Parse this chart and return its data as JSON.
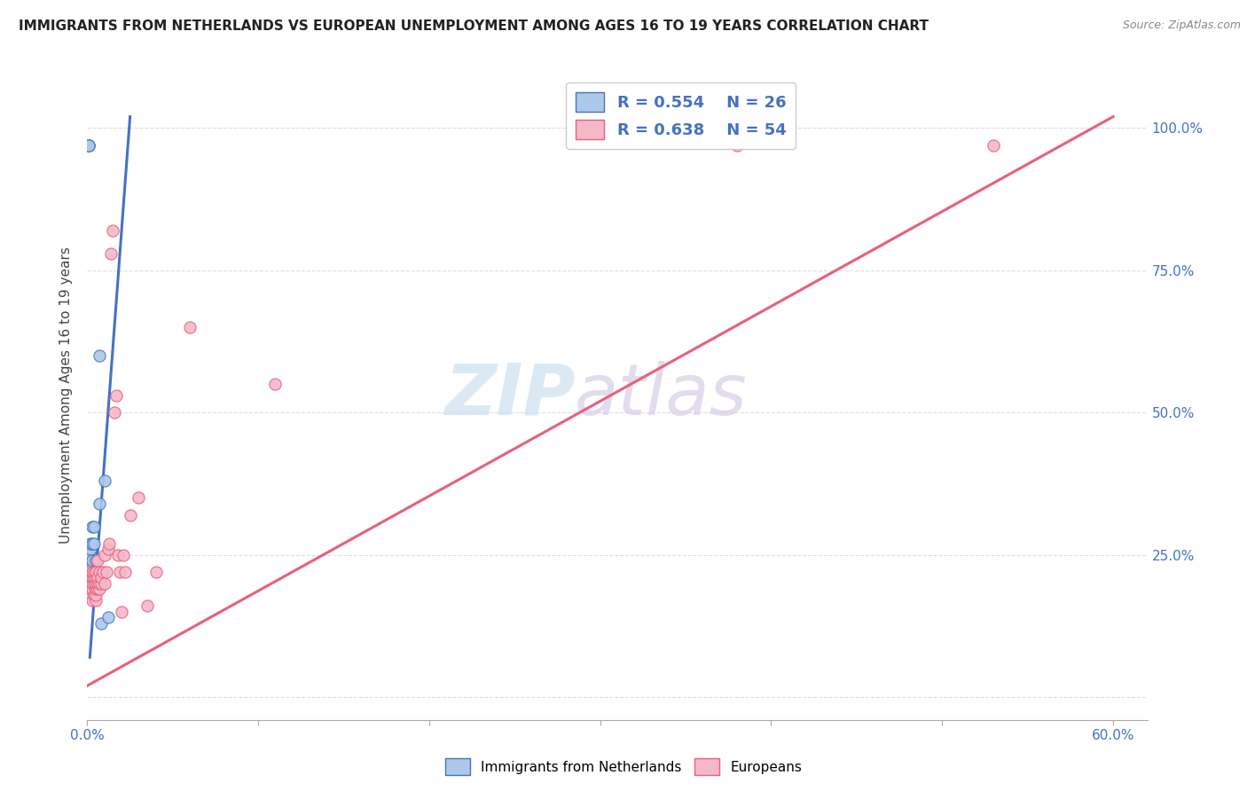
{
  "title": "IMMIGRANTS FROM NETHERLANDS VS EUROPEAN UNEMPLOYMENT AMONG AGES 16 TO 19 YEARS CORRELATION CHART",
  "source": "Source: ZipAtlas.com",
  "ylabel": "Unemployment Among Ages 16 to 19 years",
  "legend_label_blue": "Immigrants from Netherlands",
  "legend_label_pink": "Europeans",
  "legend_r_blue": "R = 0.554",
  "legend_n_blue": "N = 26",
  "legend_r_pink": "R = 0.638",
  "legend_n_pink": "N = 54",
  "blue_scatter_x": [
    0.001,
    0.001,
    0.001,
    0.002,
    0.002,
    0.002,
    0.002,
    0.003,
    0.003,
    0.003,
    0.003,
    0.003,
    0.003,
    0.004,
    0.004,
    0.004,
    0.004,
    0.005,
    0.005,
    0.005,
    0.006,
    0.007,
    0.007,
    0.008,
    0.01,
    0.012
  ],
  "blue_scatter_y": [
    0.97,
    0.97,
    0.97,
    0.24,
    0.25,
    0.26,
    0.27,
    0.21,
    0.22,
    0.23,
    0.24,
    0.27,
    0.3,
    0.2,
    0.22,
    0.27,
    0.3,
    0.2,
    0.22,
    0.24,
    0.22,
    0.34,
    0.6,
    0.13,
    0.38,
    0.14
  ],
  "pink_scatter_x": [
    0.001,
    0.001,
    0.001,
    0.002,
    0.002,
    0.002,
    0.002,
    0.003,
    0.003,
    0.003,
    0.003,
    0.003,
    0.004,
    0.004,
    0.004,
    0.004,
    0.005,
    0.005,
    0.005,
    0.005,
    0.005,
    0.005,
    0.006,
    0.006,
    0.006,
    0.006,
    0.007,
    0.007,
    0.007,
    0.008,
    0.008,
    0.009,
    0.01,
    0.01,
    0.011,
    0.012,
    0.013,
    0.014,
    0.015,
    0.016,
    0.017,
    0.018,
    0.019,
    0.02,
    0.021,
    0.022,
    0.025,
    0.03,
    0.035,
    0.04,
    0.06,
    0.11,
    0.38,
    0.53
  ],
  "pink_scatter_y": [
    0.2,
    0.21,
    0.22,
    0.18,
    0.19,
    0.2,
    0.21,
    0.17,
    0.19,
    0.2,
    0.21,
    0.22,
    0.18,
    0.2,
    0.21,
    0.22,
    0.17,
    0.18,
    0.19,
    0.2,
    0.21,
    0.22,
    0.19,
    0.2,
    0.21,
    0.24,
    0.19,
    0.2,
    0.22,
    0.2,
    0.21,
    0.22,
    0.2,
    0.25,
    0.22,
    0.26,
    0.27,
    0.78,
    0.82,
    0.5,
    0.53,
    0.25,
    0.22,
    0.15,
    0.25,
    0.22,
    0.32,
    0.35,
    0.16,
    0.22,
    0.65,
    0.55,
    0.97,
    0.97
  ],
  "blue_line_x": [
    0.0015,
    0.025
  ],
  "blue_line_y": [
    0.07,
    1.02
  ],
  "pink_line_x": [
    0.0,
    0.6
  ],
  "pink_line_y": [
    0.02,
    1.02
  ],
  "blue_color": "#adc8e8",
  "pink_color": "#f5b8c8",
  "blue_line_color": "#4472c4",
  "pink_line_color": "#e8607a",
  "xlim": [
    0.0,
    0.62
  ],
  "ylim": [
    -0.04,
    1.1
  ],
  "xticks": [
    0.0,
    0.1,
    0.2,
    0.3,
    0.4,
    0.5,
    0.6
  ],
  "xtick_labels_left": "0.0%",
  "xtick_labels_right": "60.0%",
  "yticks": [
    0.0,
    0.25,
    0.5,
    0.75,
    1.0
  ],
  "ytick_labels": [
    "",
    "25.0%",
    "50.0%",
    "75.0%",
    "100.0%"
  ],
  "background_color": "#ffffff",
  "grid_color": "#dddddd",
  "title_fontsize": 11,
  "source_fontsize": 9,
  "tick_fontsize": 11,
  "ylabel_fontsize": 11
}
